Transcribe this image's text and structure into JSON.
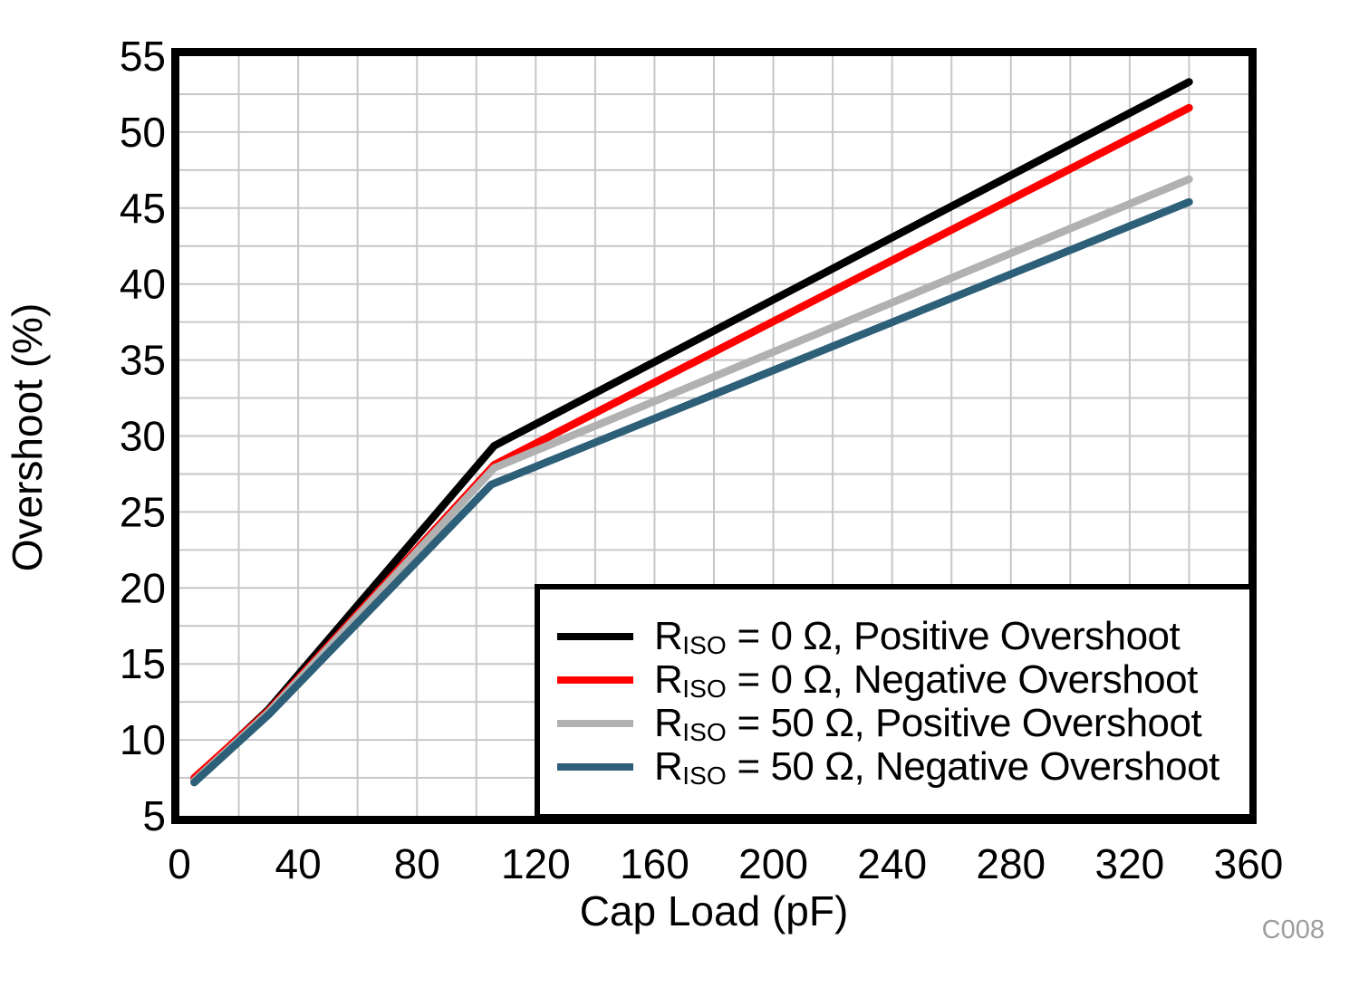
{
  "figure": {
    "code_label": "C008",
    "background": "#ffffff",
    "plot_border_color": "#000000",
    "grid_color": "#c7c7c7",
    "code_label_color": "#9d9d9d"
  },
  "chart_data": {
    "type": "line",
    "title": "",
    "xlabel": "Cap Load (pF)",
    "ylabel": "Overshoot (%)",
    "xlim": [
      0,
      360
    ],
    "ylim": [
      5,
      55
    ],
    "x_major_ticks": [
      0,
      40,
      80,
      120,
      160,
      200,
      240,
      280,
      320,
      360
    ],
    "x_minor_step": 20,
    "y_major_ticks": [
      5,
      10,
      15,
      20,
      25,
      30,
      35,
      40,
      45,
      50,
      55
    ],
    "y_minor_step": 2.5,
    "grid": "on (minor and major, light gray)",
    "legend_position": "bottom-right",
    "series": [
      {
        "name": "RISO = 0 Ω, Positive Overshoot",
        "legend": {
          "pre": "R",
          "sub": "ISO",
          "post": " = 0 Ω, Positive Overshoot"
        },
        "color": "#000000",
        "points": [
          [
            5,
            7.4
          ],
          [
            30,
            12.0
          ],
          [
            106,
            29.35
          ],
          [
            340,
            53.3
          ]
        ]
      },
      {
        "name": "RISO = 0 Ω, Negative Overshoot",
        "legend": {
          "pre": "R",
          "sub": "ISO",
          "post": " = 0 Ω, Negative Overshoot"
        },
        "color": "#ff0000",
        "points": [
          [
            5,
            7.5
          ],
          [
            30,
            11.9
          ],
          [
            106,
            28.1
          ],
          [
            340,
            51.6
          ]
        ]
      },
      {
        "name": "RISO = 50 Ω, Positive Overshoot",
        "legend": {
          "pre": "R",
          "sub": "ISO",
          "post": " = 50 Ω, Positive Overshoot"
        },
        "color": "#b1b1b1",
        "points": [
          [
            5,
            7.3
          ],
          [
            30,
            11.8
          ],
          [
            106,
            27.9
          ],
          [
            340,
            46.9
          ]
        ]
      },
      {
        "name": "RISO = 50 Ω, Negative Overshoot",
        "legend": {
          "pre": "R",
          "sub": "ISO",
          "post": " = 50 Ω, Negative Overshoot"
        },
        "color": "#2d5f78",
        "points": [
          [
            5,
            7.2
          ],
          [
            30,
            11.65
          ],
          [
            105,
            26.8
          ],
          [
            340,
            45.4
          ]
        ]
      }
    ]
  }
}
